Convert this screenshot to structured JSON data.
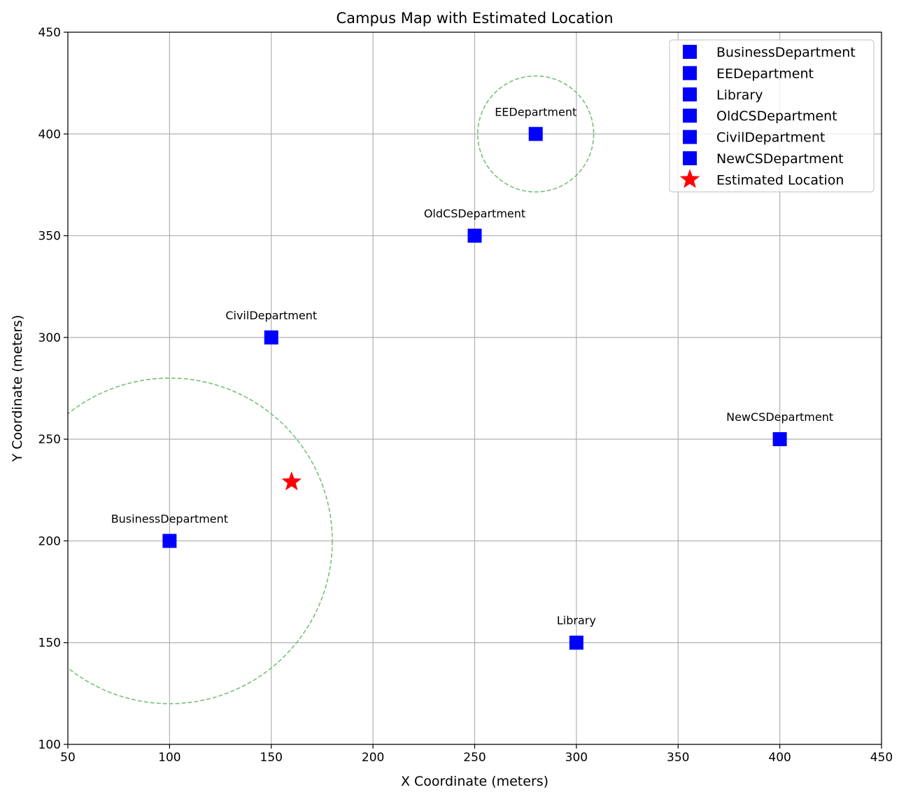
{
  "chart_data": {
    "type": "scatter",
    "title": "Campus Map with Estimated Location",
    "xlabel": "X Coordinate (meters)",
    "ylabel": "Y Coordinate (meters)",
    "xlim": [
      50,
      450
    ],
    "ylim": [
      100,
      450
    ],
    "xticks": [
      "50",
      "100",
      "150",
      "200",
      "250",
      "300",
      "350",
      "400",
      "450"
    ],
    "yticks": [
      "100",
      "150",
      "200",
      "250",
      "300",
      "350",
      "400",
      "450"
    ],
    "grid": true,
    "legend_position": "top-right",
    "series": [
      {
        "name": "BusinessDepartment",
        "marker": "square",
        "color": "#0000ff",
        "x": 100,
        "y": 200,
        "label": "BusinessDepartment"
      },
      {
        "name": "EEDepartment",
        "marker": "square",
        "color": "#0000ff",
        "x": 280,
        "y": 400,
        "label": "EEDepartment"
      },
      {
        "name": "Library",
        "marker": "square",
        "color": "#0000ff",
        "x": 300,
        "y": 150,
        "label": "Library"
      },
      {
        "name": "OldCSDepartment",
        "marker": "square",
        "color": "#0000ff",
        "x": 250,
        "y": 350,
        "label": "OldCSDepartment"
      },
      {
        "name": "CivilDepartment",
        "marker": "square",
        "color": "#0000ff",
        "x": 150,
        "y": 300,
        "label": "CivilDepartment"
      },
      {
        "name": "NewCSDepartment",
        "marker": "square",
        "color": "#0000ff",
        "x": 400,
        "y": 250,
        "label": "NewCSDepartment"
      },
      {
        "name": "Estimated Location",
        "marker": "star",
        "color": "#ff0000",
        "x": 160,
        "y": 229
      }
    ],
    "circles": [
      {
        "center": [
          100,
          200
        ],
        "radius": 80,
        "color": "#77c077",
        "style": "dashed"
      },
      {
        "center": [
          280,
          400
        ],
        "radius": 28.5,
        "color": "#77c077",
        "style": "dashed"
      }
    ]
  }
}
